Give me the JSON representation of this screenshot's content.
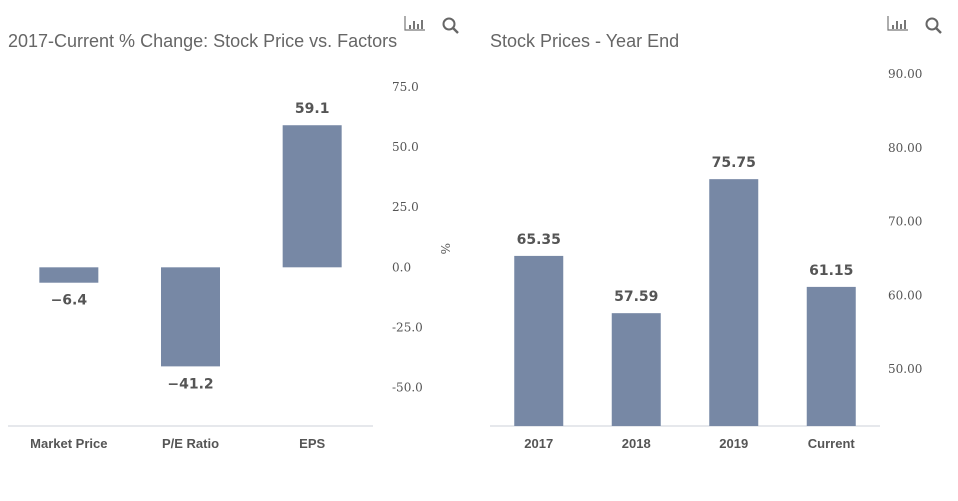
{
  "chart_data": [
    {
      "type": "bar",
      "title": "2017-Current % Change: Stock Price vs. Factors",
      "ylabel": "%",
      "categories": [
        "Market Price",
        "P/E Ratio",
        "EPS"
      ],
      "values": [
        -6.4,
        -41.2,
        59.1
      ],
      "data_labels": [
        "−6.4",
        "−41.2",
        "59.1"
      ],
      "yticks": [
        "75.0",
        "50.0",
        "25.0",
        "0.0",
        "-25.0",
        "-50.0"
      ],
      "ytick_values": [
        75,
        50,
        25,
        0,
        -25,
        -50
      ],
      "ylim": [
        -66,
        75
      ],
      "yaxis_side": "right",
      "grid": false,
      "bar_color": "#7788a5"
    },
    {
      "type": "bar",
      "title": "Stock Prices - Year End",
      "categories": [
        "2017",
        "2018",
        "2019",
        "Current"
      ],
      "values": [
        65.35,
        57.59,
        75.75,
        61.15
      ],
      "data_labels": [
        "65.35",
        "57.59",
        "75.75",
        "61.15"
      ],
      "yticks": [
        "90.00",
        "80.00",
        "70.00",
        "60.00",
        "50.00"
      ],
      "ytick_values": [
        90,
        80,
        70,
        60,
        50
      ],
      "ylim": [
        42.3,
        90
      ],
      "yaxis_side": "right",
      "grid": false,
      "bar_color": "#7788a5"
    }
  ],
  "toolbar": {
    "icons": [
      "bar-chart-icon",
      "search-icon"
    ]
  }
}
